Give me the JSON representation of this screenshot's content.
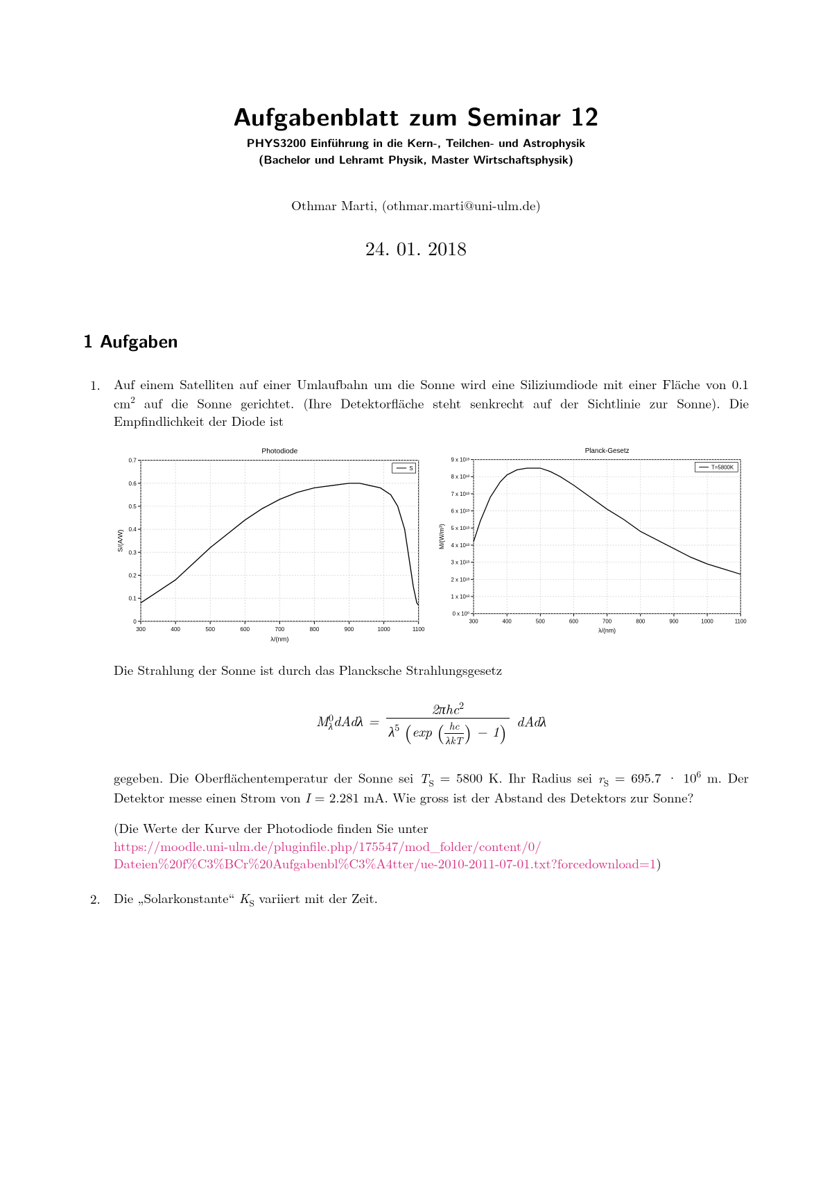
{
  "title": "Aufgabenblatt zum Seminar 12",
  "subtitle1": "PHYS3200 Einführung in die Kern-, Teilchen- und Astrophysik",
  "subtitle2": "(Bachelor und Lehramt Physik, Master Wirtschaftsphysik)",
  "author": "Othmar Marti, (othmar.marti@uni-ulm.de)",
  "date": "24. 01. 2018",
  "section1_heading": "1  Aufgaben",
  "task1_num": "1.",
  "task1_p1_a": "Auf einem Satelliten auf einer Umlaufbahn um die Sonne wird eine Siliziumdiode mit einer Fläche von 0.1 cm",
  "task1_p1_b": " auf die Sonne gerichtet. (Ihre Detektorfläche steht senkrecht auf der Sichtlinie zur Sonne). Die Empfindlichkeit der Diode ist",
  "task1_p2": "Die Strahlung der Sonne ist durch das Plancksche Strahlungsgesetz",
  "task1_p3_a": "gegeben. Die Oberflächentemperatur der Sonne sei ",
  "task1_p3_b": " = 5800 K. Ihr Radius sei ",
  "task1_p3_c": " = 695.7 · 10",
  "task1_p3_d": " m. Der Detektor messe einen Strom von ",
  "task1_p3_e": " = 2.281 mA. Wie gross ist der Abstand des Detektors zur Sonne?",
  "task1_p4": "(Die Werte der Kurve der Photodiode finden Sie unter",
  "task1_link1": "https://moodle.uni-ulm.de/pluginfile.php/175547/mod_folder/content/0/",
  "task1_link2": "Dateien%20f%C3%BCr%20Aufgabenbl%C3%A4tter/ue-2010-2011-07-01.txt?forcedownload=1",
  "task1_closeparens": ")",
  "task2_num": "2.",
  "task2_p1_a": "Die „Solarkonstante“ ",
  "task2_p1_b": " variiert mit der Zeit.",
  "chart_left": {
    "title": "Photodiode",
    "xlabel": "λ/(nm)",
    "ylabel": "S/(A/W)",
    "legend": "S",
    "xlim": [
      300,
      1100
    ],
    "ylim": [
      0,
      0.7
    ],
    "xticks": [
      300,
      400,
      500,
      600,
      700,
      800,
      900,
      1000,
      1100
    ],
    "yticks": [
      0,
      0.1,
      0.2,
      0.3,
      0.4,
      0.5,
      0.6,
      0.7
    ],
    "grid_color": "#cccccc",
    "line_color": "#000000",
    "background": "#ffffff",
    "tick_fontsize": 8,
    "title_fontsize": 10,
    "data": [
      [
        300,
        0.08
      ],
      [
        320,
        0.1
      ],
      [
        350,
        0.13
      ],
      [
        380,
        0.16
      ],
      [
        400,
        0.18
      ],
      [
        450,
        0.25
      ],
      [
        500,
        0.32
      ],
      [
        550,
        0.38
      ],
      [
        600,
        0.44
      ],
      [
        650,
        0.49
      ],
      [
        700,
        0.53
      ],
      [
        750,
        0.56
      ],
      [
        800,
        0.58
      ],
      [
        850,
        0.59
      ],
      [
        900,
        0.6
      ],
      [
        930,
        0.6
      ],
      [
        960,
        0.59
      ],
      [
        990,
        0.58
      ],
      [
        1020,
        0.55
      ],
      [
        1040,
        0.5
      ],
      [
        1060,
        0.4
      ],
      [
        1075,
        0.25
      ],
      [
        1085,
        0.15
      ],
      [
        1095,
        0.08
      ],
      [
        1100,
        0.07
      ]
    ]
  },
  "chart_right": {
    "title": "Planck-Gesetz",
    "xlabel": "λ/(nm)",
    "ylabel": "M/(W/m³)",
    "legend": "T=5800K",
    "xlim": [
      300,
      1100
    ],
    "ylim": [
      0,
      90000000000000.0
    ],
    "xticks": [
      300,
      400,
      500,
      600,
      700,
      800,
      900,
      1000,
      1100
    ],
    "ytick_labels": [
      "0 x 10⁰",
      "1 x 10¹³",
      "2 x 10¹³",
      "3 x 10¹³",
      "4 x 10¹³",
      "5 x 10¹³",
      "6 x 10¹³",
      "7 x 10¹³",
      "8 x 10¹³",
      "9 x 10¹³"
    ],
    "ytick_vals": [
      0,
      10000000000000.0,
      20000000000000.0,
      30000000000000.0,
      40000000000000.0,
      50000000000000.0,
      60000000000000.0,
      70000000000000.0,
      80000000000000.0,
      90000000000000.0
    ],
    "grid_color": "#cccccc",
    "line_color": "#000000",
    "background": "#ffffff",
    "tick_fontsize": 8,
    "title_fontsize": 10,
    "data": [
      [
        300,
        42000000000000.0
      ],
      [
        320,
        54000000000000.0
      ],
      [
        350,
        68000000000000.0
      ],
      [
        380,
        77000000000000.0
      ],
      [
        400,
        81000000000000.0
      ],
      [
        430,
        84000000000000.0
      ],
      [
        460,
        85000000000000.0
      ],
      [
        500,
        85000000000000.0
      ],
      [
        530,
        83000000000000.0
      ],
      [
        560,
        80000000000000.0
      ],
      [
        600,
        75000000000000.0
      ],
      [
        650,
        68000000000000.0
      ],
      [
        700,
        61000000000000.0
      ],
      [
        750,
        55000000000000.0
      ],
      [
        800,
        48000000000000.0
      ],
      [
        850,
        43000000000000.0
      ],
      [
        900,
        38000000000000.0
      ],
      [
        950,
        33000000000000.0
      ],
      [
        1000,
        29000000000000.0
      ],
      [
        1050,
        26000000000000.0
      ],
      [
        1100,
        23000000000000.0
      ]
    ]
  }
}
